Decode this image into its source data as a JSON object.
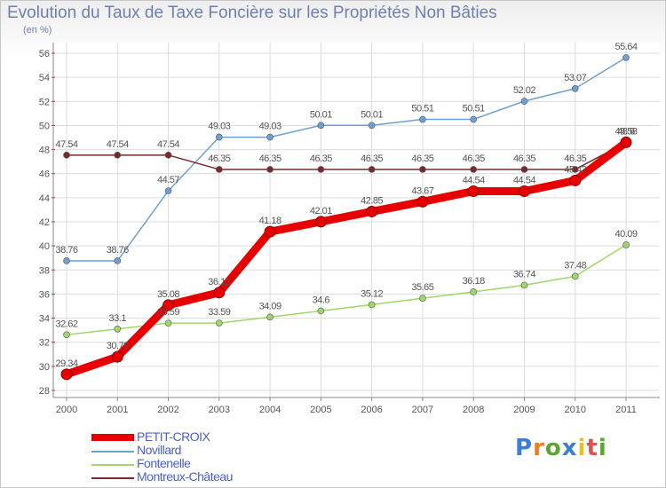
{
  "title": "Evolution du Taux de Taxe Foncière sur les Propriétés Non Bâties",
  "unit": "(en %)",
  "logo": "Proxiti",
  "chart_data": {
    "type": "line",
    "title": "Evolution du Taux de Taxe Foncière sur les Propriétés Non Bâties",
    "ylabel": "(en %)",
    "x": [
      "2000",
      "2001",
      "2002",
      "2003",
      "2004",
      "2005",
      "2006",
      "2007",
      "2008",
      "2009",
      "2010",
      "2011"
    ],
    "ylim": [
      28,
      56
    ],
    "yticks": [
      28,
      30,
      32,
      34,
      36,
      38,
      40,
      42,
      44,
      46,
      48,
      50,
      52,
      54,
      56
    ],
    "grid": true,
    "legend_position": "bottom-left",
    "series": [
      {
        "name": "PETIT-CROIX",
        "color": "#e60000",
        "values": [
          29.34,
          30.79,
          35.08,
          36.12,
          41.18,
          42.01,
          42.85,
          43.67,
          44.54,
          44.54,
          45.43,
          48.6
        ],
        "labels": [
          "29.34",
          "30.79",
          "35.08",
          "36.12",
          "41.18",
          "42.01",
          "42.85",
          "43.67",
          "44.54",
          "44.54",
          "45.43",
          "48.6"
        ]
      },
      {
        "name": "Novillard",
        "color": "#6fa0d4",
        "values": [
          38.76,
          38.76,
          44.57,
          49.03,
          49.03,
          50.01,
          50.01,
          50.51,
          50.51,
          52.02,
          53.07,
          55.64
        ],
        "labels": [
          "38.76",
          "38.76",
          "44.57",
          "49.03",
          "49.03",
          "50.01",
          "50.01",
          "50.51",
          "50.51",
          "52.02",
          "53.07",
          "55.64"
        ]
      },
      {
        "name": "Fontenelle",
        "color": "#9ed86a",
        "values": [
          32.62,
          33.1,
          33.59,
          33.59,
          34.09,
          34.6,
          35.12,
          35.65,
          36.18,
          36.74,
          37.48,
          40.09
        ],
        "labels": [
          "32.62",
          "33.1",
          "33.59",
          "33.59",
          "34.09",
          "34.6",
          "35.12",
          "35.65",
          "36.18",
          "36.74",
          "37.48",
          "40.09"
        ]
      },
      {
        "name": "Montreux-Château",
        "color": "#7a2a2a",
        "values": [
          47.54,
          47.54,
          47.54,
          46.35,
          46.35,
          46.35,
          46.35,
          46.35,
          46.35,
          46.35,
          46.35,
          48.58
        ],
        "labels": [
          "47.54",
          "47.54",
          "47.54",
          "46.35",
          "46.35",
          "46.35",
          "46.35",
          "46.35",
          "46.35",
          "46.35",
          "46.35",
          "48.58"
        ]
      }
    ]
  }
}
